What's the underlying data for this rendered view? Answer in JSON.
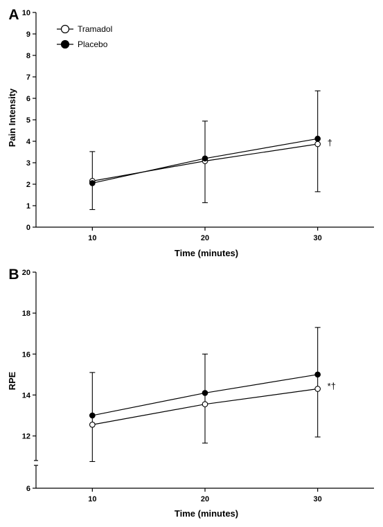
{
  "chart_data": [
    {
      "type": "line",
      "panel_label": "A",
      "xlabel": "Time (minutes)",
      "ylabel": "Pain Intensity",
      "x": [
        10,
        20,
        30
      ],
      "xlim": [
        5,
        35
      ],
      "ylim": [
        0,
        10
      ],
      "yticks": [
        0,
        1,
        2,
        3,
        4,
        5,
        6,
        7,
        8,
        9,
        10
      ],
      "legend_position": "top-left",
      "series": [
        {
          "name": "Tramadol",
          "marker": "open-circle",
          "values": [
            2.15,
            3.08,
            3.87
          ],
          "error_low": [
            0.82,
            1.14,
            1.65
          ],
          "error_high": [
            3.52,
            4.94,
            6.35
          ]
        },
        {
          "name": "Placebo",
          "marker": "filled-circle",
          "values": [
            2.05,
            3.2,
            4.12
          ],
          "error_low": [
            0.82,
            1.14,
            1.65
          ],
          "error_high": [
            3.52,
            4.94,
            6.35
          ]
        }
      ],
      "annotations": [
        {
          "x": 30,
          "y": 3.95,
          "text": "†"
        }
      ]
    },
    {
      "type": "line",
      "panel_label": "B",
      "xlabel": "Time (minutes)",
      "ylabel": "RPE",
      "x": [
        10,
        20,
        30
      ],
      "xlim": [
        5,
        35
      ],
      "ylim": [
        6,
        20
      ],
      "axis_break": [
        7.5,
        10.8
      ],
      "yticks": [
        6,
        12,
        14,
        16,
        18,
        20
      ],
      "series": [
        {
          "name": "Tramadol",
          "marker": "open-circle",
          "values": [
            12.55,
            13.55,
            14.3
          ],
          "error_low": [
            10.75,
            11.65,
            11.95
          ],
          "error_high": [
            15.1,
            16.0,
            17.3
          ]
        },
        {
          "name": "Placebo",
          "marker": "filled-circle",
          "values": [
            13.0,
            14.1,
            15.0
          ],
          "error_low": [
            10.75,
            11.65,
            11.95
          ],
          "error_high": [
            15.1,
            16.0,
            17.3
          ]
        }
      ],
      "annotations": [
        {
          "x": 30,
          "y": 14.45,
          "text": "*†"
        }
      ]
    }
  ]
}
